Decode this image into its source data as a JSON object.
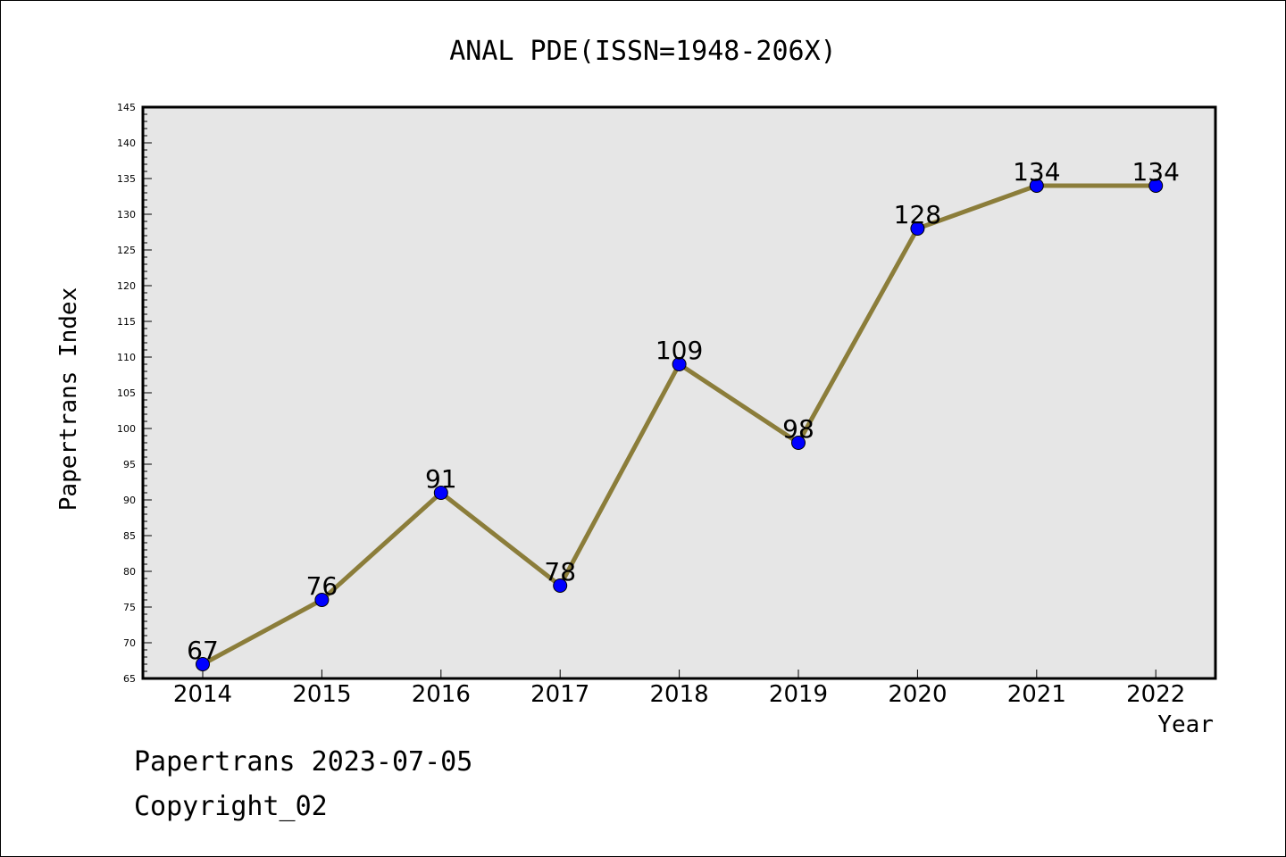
{
  "chart_data": {
    "type": "line",
    "title": "ANAL PDE(ISSN=1948-206X)",
    "xlabel": "Year",
    "ylabel": "Papertrans Index",
    "categories": [
      "2014",
      "2015",
      "2016",
      "2017",
      "2018",
      "2019",
      "2020",
      "2021",
      "2022"
    ],
    "series": [
      {
        "values": [
          67,
          76,
          91,
          78,
          109,
          98,
          128,
          134,
          134
        ]
      }
    ],
    "ylim": [
      65,
      145
    ],
    "yticks": [
      65,
      70,
      75,
      80,
      85,
      90,
      95,
      100,
      105,
      110,
      115,
      120,
      125,
      130,
      135,
      140,
      145
    ],
    "grid": false,
    "legend": "none",
    "colors": {
      "line": "#8b7d3a",
      "marker": "#0000ff",
      "plot_background": "#e6e6e6"
    }
  },
  "footer": {
    "line1": "Papertrans 2023-07-05",
    "line2": "Copyright_02"
  }
}
